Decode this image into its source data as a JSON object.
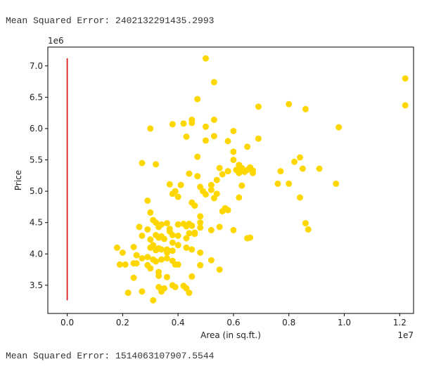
{
  "outputs": {
    "mse_top": "Mean Squared Error: 2402132291435.2993",
    "mse_bottom": "Mean Squared Error: 1514063107907.5544"
  },
  "chart_data": {
    "type": "scatter",
    "xlabel": "Area (in sq.ft.)",
    "ylabel": "Price",
    "x_offset_label": "1e7",
    "y_offset_label": "1e6",
    "xlim": [
      -0.07,
      1.25
    ],
    "ylim": [
      3.05,
      7.3
    ],
    "xticks": [
      0.0,
      0.2,
      0.4,
      0.6,
      0.8,
      1.0,
      1.2
    ],
    "xtick_labels": [
      "0.0",
      "0.2",
      "0.4",
      "0.6",
      "0.8",
      "1.0",
      "1.2"
    ],
    "yticks": [
      3.5,
      4.0,
      4.5,
      5.0,
      5.5,
      6.0,
      6.5,
      7.0
    ],
    "ytick_labels": [
      "3.5",
      "4.0",
      "4.5",
      "5.0",
      "5.5",
      "6.0",
      "6.5",
      "7.0"
    ],
    "grid": false,
    "colors": {
      "scatter": "#FFD700",
      "line": "#dd0000"
    },
    "regression_line": {
      "x": [
        0.0,
        0.0
      ],
      "y": [
        3.26,
        7.12
      ]
    },
    "points": [
      [
        0.5,
        7.12
      ],
      [
        0.53,
        6.74
      ],
      [
        1.22,
        6.8
      ],
      [
        1.22,
        6.37
      ],
      [
        0.47,
        6.47
      ],
      [
        0.69,
        6.35
      ],
      [
        0.8,
        6.39
      ],
      [
        0.86,
        6.31
      ],
      [
        0.3,
        6.0
      ],
      [
        0.38,
        6.07
      ],
      [
        0.42,
        6.08
      ],
      [
        0.45,
        6.09
      ],
      [
        0.45,
        6.14
      ],
      [
        0.53,
        6.14
      ],
      [
        0.5,
        6.03
      ],
      [
        0.6,
        5.96
      ],
      [
        0.98,
        6.02
      ],
      [
        0.43,
        5.87
      ],
      [
        0.5,
        5.81
      ],
      [
        0.53,
        5.88
      ],
      [
        0.58,
        5.8
      ],
      [
        0.69,
        5.84
      ],
      [
        0.65,
        5.71
      ],
      [
        0.27,
        5.45
      ],
      [
        0.32,
        5.43
      ],
      [
        0.47,
        5.55
      ],
      [
        0.6,
        5.63
      ],
      [
        0.6,
        5.5
      ],
      [
        0.62,
        5.42
      ],
      [
        0.61,
        5.34
      ],
      [
        0.55,
        5.37
      ],
      [
        0.56,
        5.27
      ],
      [
        0.63,
        5.37
      ],
      [
        0.66,
        5.38
      ],
      [
        0.67,
        5.33
      ],
      [
        0.58,
        5.32
      ],
      [
        0.62,
        5.29
      ],
      [
        0.64,
        5.31
      ],
      [
        0.65,
        5.34
      ],
      [
        0.67,
        5.29
      ],
      [
        0.82,
        5.47
      ],
      [
        0.84,
        5.54
      ],
      [
        0.85,
        5.36
      ],
      [
        0.91,
        5.36
      ],
      [
        0.77,
        5.32
      ],
      [
        0.76,
        5.12
      ],
      [
        0.8,
        5.12
      ],
      [
        0.97,
        5.12
      ],
      [
        0.44,
        5.28
      ],
      [
        0.47,
        5.24
      ],
      [
        0.37,
        5.11
      ],
      [
        0.39,
        5.0
      ],
      [
        0.38,
        4.96
      ],
      [
        0.41,
        5.1
      ],
      [
        0.48,
        5.07
      ],
      [
        0.49,
        5.0
      ],
      [
        0.52,
        5.1
      ],
      [
        0.54,
        5.18
      ],
      [
        0.52,
        5.02
      ],
      [
        0.5,
        4.95
      ],
      [
        0.53,
        4.89
      ],
      [
        0.54,
        4.96
      ],
      [
        0.63,
        5.09
      ],
      [
        0.62,
        4.9
      ],
      [
        0.29,
        4.85
      ],
      [
        0.4,
        4.91
      ],
      [
        0.45,
        4.82
      ],
      [
        0.46,
        4.77
      ],
      [
        0.57,
        4.73
      ],
      [
        0.58,
        4.7
      ],
      [
        0.56,
        4.68
      ],
      [
        0.3,
        4.66
      ],
      [
        0.31,
        4.54
      ],
      [
        0.32,
        4.5
      ],
      [
        0.34,
        4.47
      ],
      [
        0.36,
        4.49
      ],
      [
        0.33,
        4.43
      ],
      [
        0.37,
        4.4
      ],
      [
        0.4,
        4.47
      ],
      [
        0.42,
        4.48
      ],
      [
        0.43,
        4.44
      ],
      [
        0.44,
        4.48
      ],
      [
        0.45,
        4.45
      ],
      [
        0.48,
        4.6
      ],
      [
        0.48,
        4.5
      ],
      [
        0.48,
        4.42
      ],
      [
        0.46,
        4.34
      ],
      [
        0.52,
        4.38
      ],
      [
        0.55,
        4.43
      ],
      [
        0.6,
        4.38
      ],
      [
        0.65,
        4.25
      ],
      [
        0.66,
        4.26
      ],
      [
        0.84,
        4.9
      ],
      [
        0.86,
        4.49
      ],
      [
        0.87,
        4.39
      ],
      [
        0.26,
        4.43
      ],
      [
        0.29,
        4.39
      ],
      [
        0.27,
        4.29
      ],
      [
        0.3,
        4.23
      ],
      [
        0.32,
        4.3
      ],
      [
        0.33,
        4.26
      ],
      [
        0.34,
        4.28
      ],
      [
        0.35,
        4.24
      ],
      [
        0.37,
        4.36
      ],
      [
        0.38,
        4.3
      ],
      [
        0.4,
        4.29
      ],
      [
        0.43,
        4.25
      ],
      [
        0.44,
        4.33
      ],
      [
        0.46,
        4.32
      ],
      [
        0.38,
        4.18
      ],
      [
        0.4,
        4.14
      ],
      [
        0.36,
        4.07
      ],
      [
        0.33,
        4.09
      ],
      [
        0.31,
        4.14
      ],
      [
        0.3,
        4.1
      ],
      [
        0.32,
        4.06
      ],
      [
        0.34,
        4.07
      ],
      [
        0.36,
        4.02
      ],
      [
        0.38,
        4.05
      ],
      [
        0.43,
        4.1
      ],
      [
        0.45,
        4.07
      ],
      [
        0.48,
        4.02
      ],
      [
        0.2,
        4.02
      ],
      [
        0.18,
        4.1
      ],
      [
        0.24,
        4.11
      ],
      [
        0.25,
        3.98
      ],
      [
        0.27,
        3.93
      ],
      [
        0.29,
        3.95
      ],
      [
        0.31,
        3.91
      ],
      [
        0.32,
        3.88
      ],
      [
        0.34,
        3.91
      ],
      [
        0.36,
        3.93
      ],
      [
        0.38,
        3.89
      ],
      [
        0.19,
        3.83
      ],
      [
        0.21,
        3.83
      ],
      [
        0.24,
        3.85
      ],
      [
        0.25,
        3.85
      ],
      [
        0.29,
        3.82
      ],
      [
        0.3,
        3.77
      ],
      [
        0.33,
        3.71
      ],
      [
        0.33,
        3.65
      ],
      [
        0.36,
        3.63
      ],
      [
        0.39,
        3.83
      ],
      [
        0.4,
        3.83
      ],
      [
        0.45,
        3.64
      ],
      [
        0.48,
        3.82
      ],
      [
        0.52,
        3.9
      ],
      [
        0.55,
        3.75
      ],
      [
        0.24,
        3.62
      ],
      [
        0.33,
        3.47
      ],
      [
        0.35,
        3.45
      ],
      [
        0.38,
        3.5
      ],
      [
        0.39,
        3.47
      ],
      [
        0.42,
        3.49
      ],
      [
        0.43,
        3.45
      ],
      [
        0.44,
        3.38
      ],
      [
        0.22,
        3.38
      ],
      [
        0.27,
        3.4
      ],
      [
        0.34,
        3.4
      ],
      [
        0.31,
        3.26
      ]
    ]
  }
}
